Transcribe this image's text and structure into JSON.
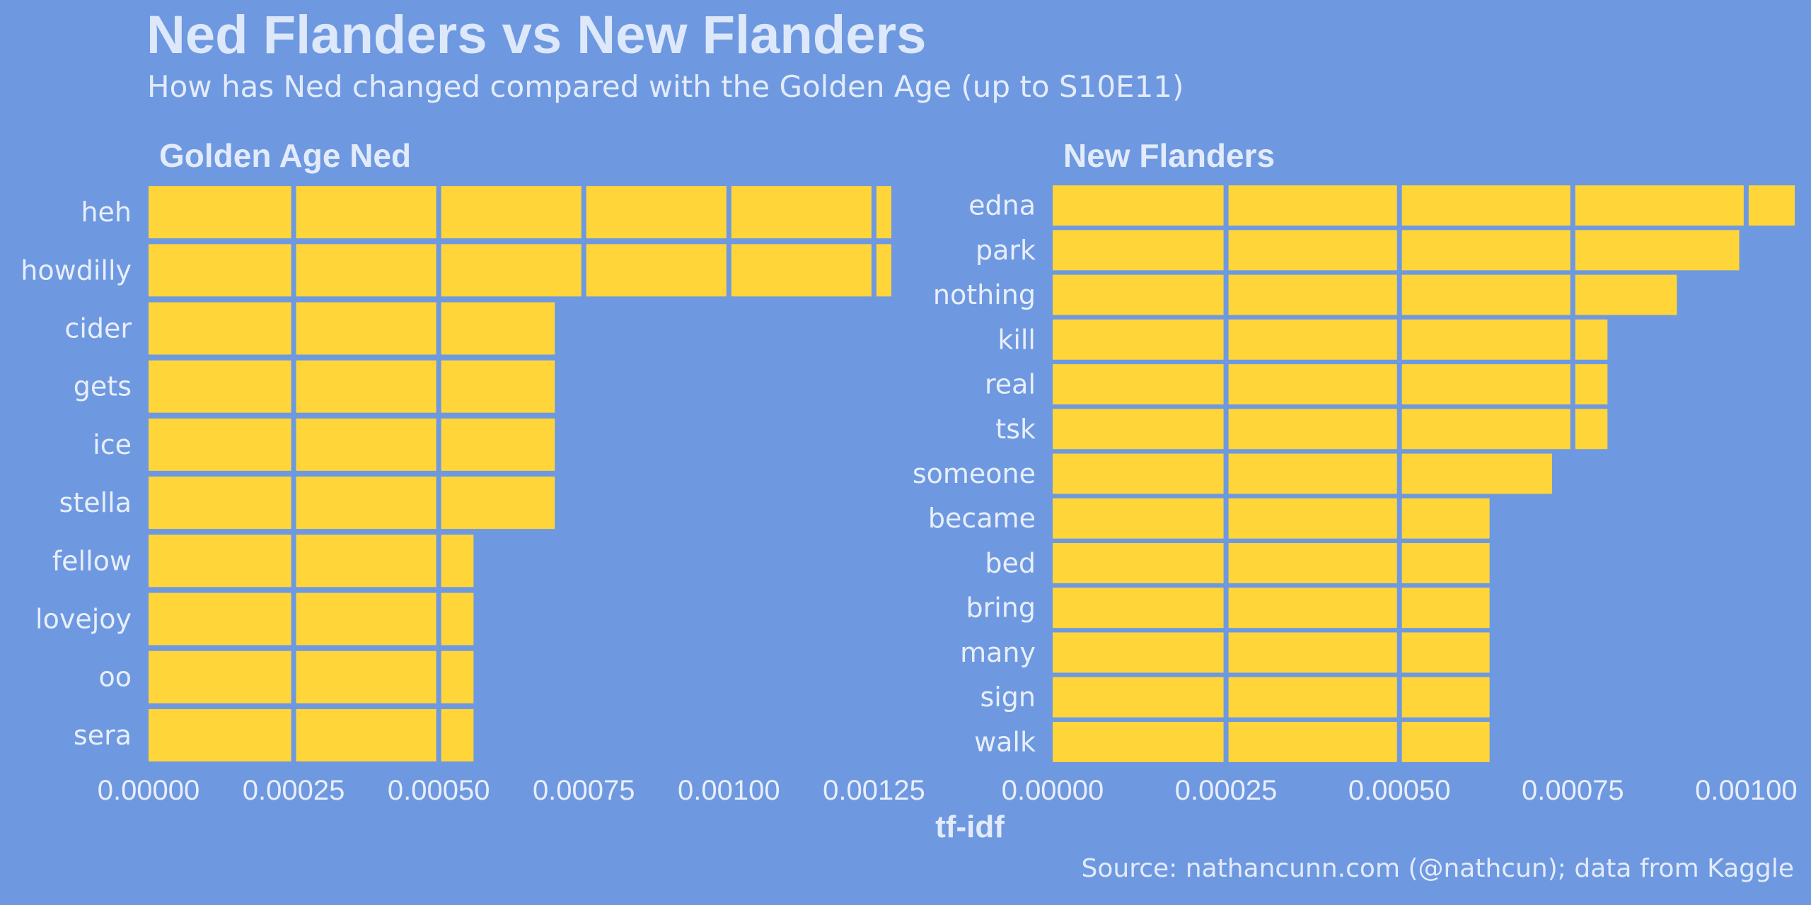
{
  "title": "Ned Flanders vs New Flanders",
  "subtitle": "How has Ned changed compared with the Golden Age (up to S10E11)",
  "caption": "Source: nathancunn.com (@nathcun); data from Kaggle",
  "colors": {
    "background": "#6e99e0",
    "bar": "#ffd53a",
    "text": "#e8eefb"
  },
  "chart_data": [
    {
      "type": "bar",
      "orientation": "horizontal",
      "title": "Golden Age Ned",
      "xlabel": "tf-idf",
      "xlim": [
        0,
        0.00128
      ],
      "xticks": [
        0,
        0.00025,
        0.0005,
        0.00075,
        0.001,
        0.00125
      ],
      "xtick_labels": [
        "0.00000",
        "0.00025",
        "0.00050",
        "0.00075",
        "0.00100",
        "0.00125"
      ],
      "categories": [
        "heh",
        "howdilly",
        "cider",
        "gets",
        "ice",
        "stella",
        "fellow",
        "lovejoy",
        "oo",
        "sera"
      ],
      "values": [
        0.00128,
        0.00128,
        0.0007,
        0.0007,
        0.0007,
        0.0007,
        0.00056,
        0.00056,
        0.00056,
        0.00056
      ]
    },
    {
      "type": "bar",
      "orientation": "horizontal",
      "title": "New Flanders",
      "xlabel": "tf-idf",
      "xlim": [
        0,
        0.00107
      ],
      "xticks": [
        0,
        0.00025,
        0.0005,
        0.00075,
        0.001
      ],
      "xtick_labels": [
        "0.00000",
        "0.00025",
        "0.00050",
        "0.00075",
        "0.00100"
      ],
      "categories": [
        "edna",
        "park",
        "nothing",
        "kill",
        "real",
        "tsk",
        "someone",
        "became",
        "bed",
        "bring",
        "many",
        "sign",
        "walk"
      ],
      "values": [
        0.00107,
        0.00099,
        0.0009,
        0.0008,
        0.0008,
        0.0008,
        0.00072,
        0.00063,
        0.00063,
        0.00063,
        0.00063,
        0.00063,
        0.00063
      ]
    }
  ]
}
